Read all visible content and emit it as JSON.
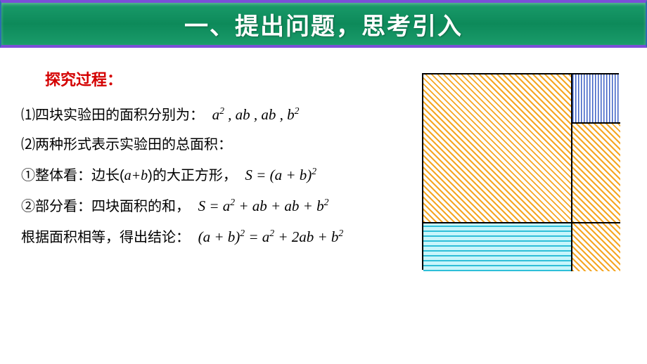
{
  "header": {
    "title": "一、提出问题，思考引入"
  },
  "content": {
    "explore_label": "探究过程：",
    "line1_prefix": "⑴四块实验田的面积分别为：",
    "line1_formula": "a², ab, ab, b²",
    "line2": "⑵两种形式表示实验田的总面积：",
    "line3_prefix": "①整体看：边长(",
    "line3_ab": "a+b",
    "line3_suffix": ")的大正方形，",
    "line3_formula": "S = (a + b)²",
    "line4_prefix": "②部分看：四块面积的和，",
    "line4_formula": "S = a² + ab + ab + b²",
    "line5_prefix": "根据面积相等，得出结论：",
    "line5_formula": "(a + b)² = a² + 2ab + b²"
  },
  "diagram": {
    "type": "geometric-square",
    "total_side": 280,
    "a_length": 210,
    "b_length": 70,
    "regions": {
      "a_squared": {
        "pattern": "diagonal-hatch",
        "color": "#f5a623",
        "bg": "#ffffff"
      },
      "b_squared_top": {
        "pattern": "vertical-hatch",
        "color": "#3b5fc4",
        "bg": "#ffffff"
      },
      "ab_right": {
        "pattern": "diagonal-hatch",
        "color": "#f5a623",
        "bg": "#ffffff"
      },
      "ab_bottom": {
        "pattern": "horizontal-hatch",
        "color": "#2fbfd8",
        "bg": "#c8f5fb"
      },
      "bb_corner": {
        "pattern": "diagonal-hatch",
        "color": "#f5a623",
        "bg": "#ffffff"
      }
    },
    "border_color": "#000000",
    "border_width": 2
  },
  "colors": {
    "header_gradient_top": "#1a9b6a",
    "header_gradient_mid": "#0d8a5a",
    "header_border": "#7b4fd8",
    "explore_text": "#d40000",
    "body_text": "#000000",
    "background": "#ffffff"
  },
  "typography": {
    "header_fontsize": 34,
    "body_fontsize": 20,
    "explore_fontsize": 22,
    "formula_font": "Times New Roman"
  }
}
